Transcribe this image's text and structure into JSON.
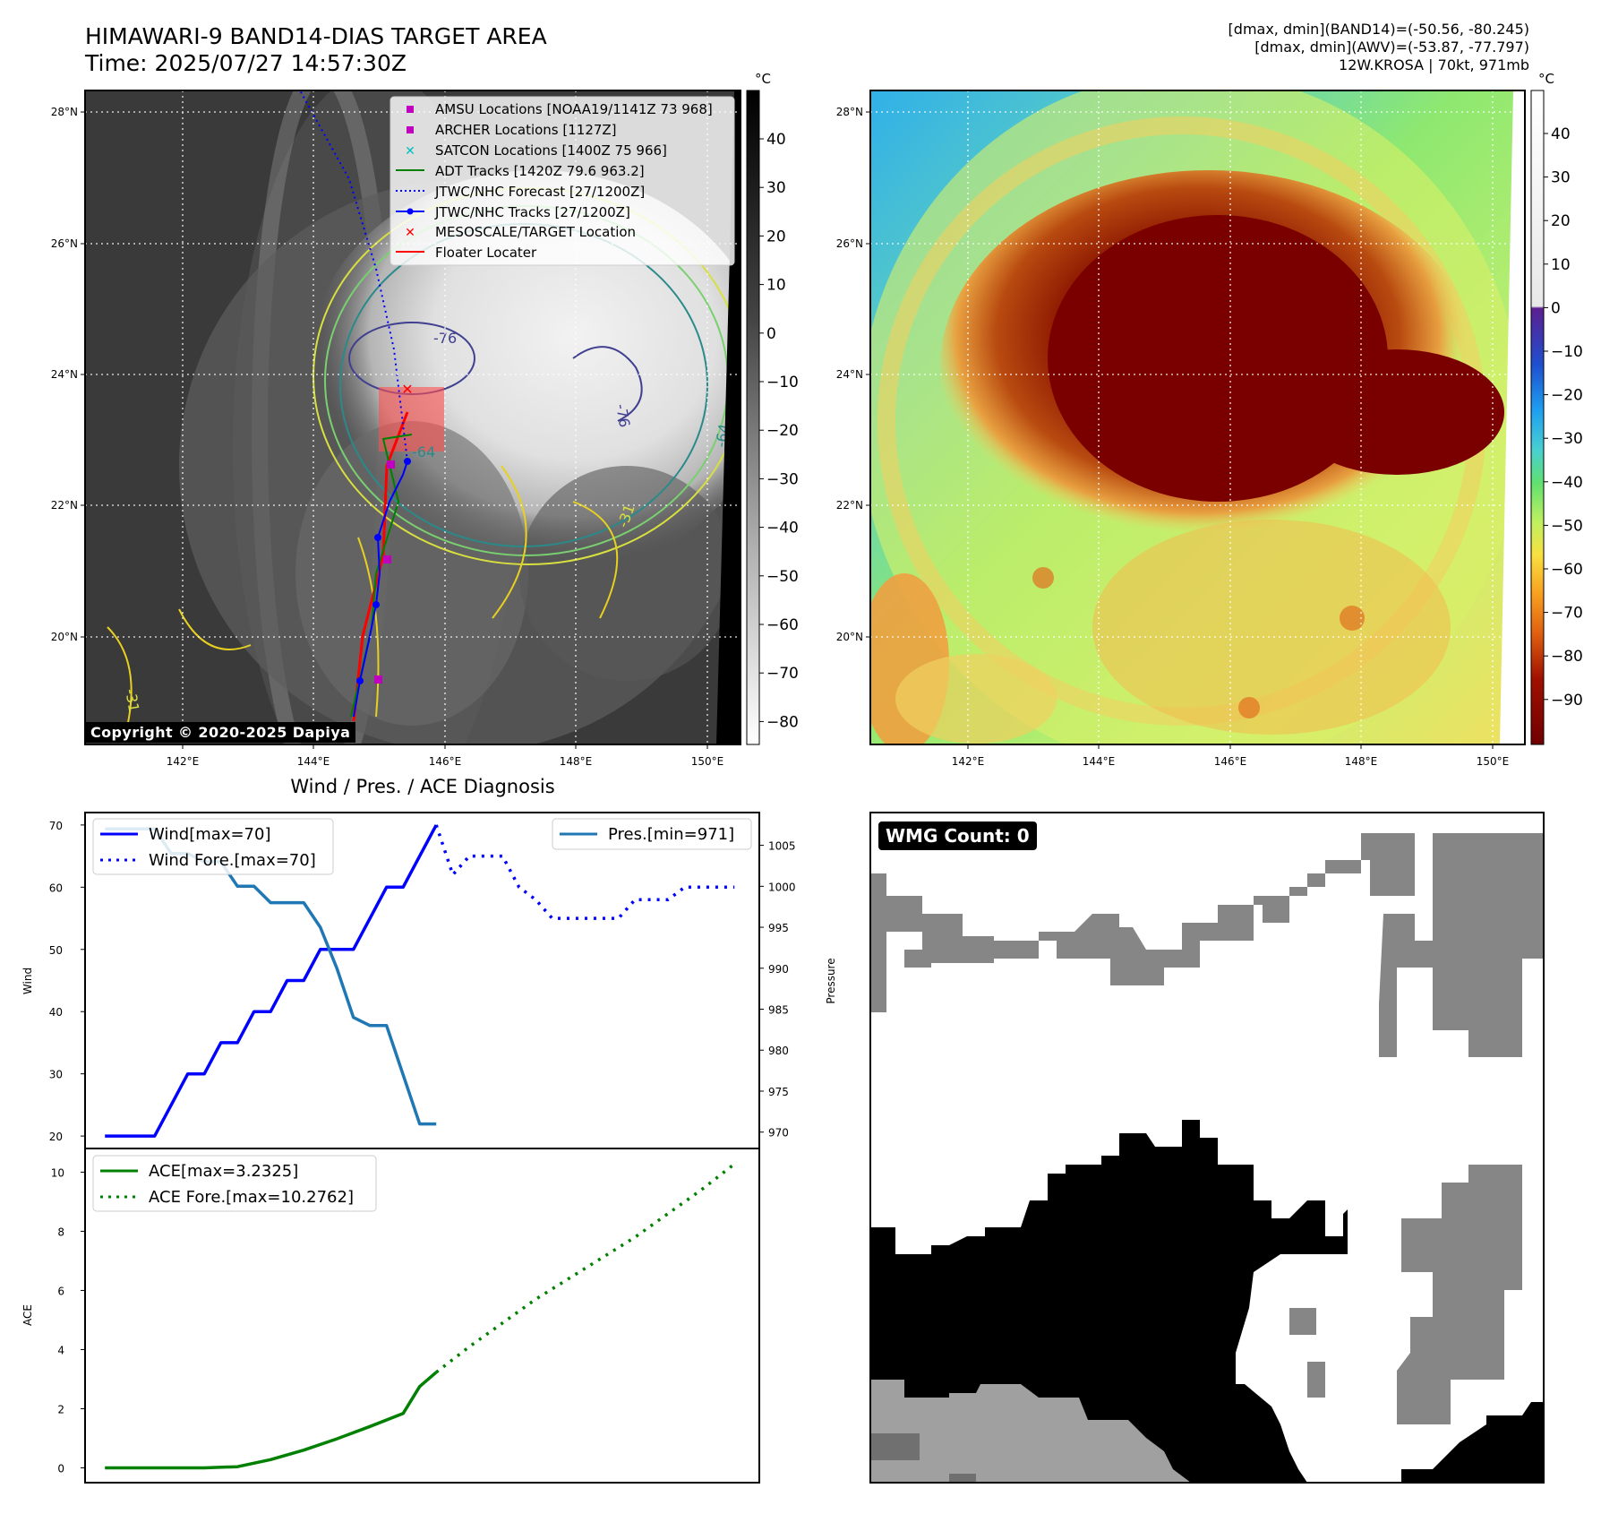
{
  "header": {
    "title_line1": "HIMAWARI-9 BAND14-DIAS TARGET AREA",
    "title_line2": "Time: 2025/07/27 14:57:30Z",
    "info_line1": "[dmax, dmin](BAND14)=(-50.56, -80.245)",
    "info_line2": "[dmax, dmin](AWV)=(-53.87, -77.797)",
    "info_line3": "12W.KROSA | 70kt, 971mb"
  },
  "map_axes": {
    "x_ticks": [
      "142°E",
      "144°E",
      "146°E",
      "148°E",
      "150°E"
    ],
    "y_ticks": [
      "28°N",
      "26°N",
      "24°N",
      "22°N",
      "20°N"
    ]
  },
  "ir_map": {
    "copyright": "Copyright © 2020-2025 Dapiya",
    "colorbar_unit": "°C",
    "colorbar_ticks": [
      "40",
      "30",
      "20",
      "10",
      "0",
      "−10",
      "−20",
      "−30",
      "−40",
      "−50",
      "−60",
      "−70",
      "−80"
    ],
    "contour_labels": [
      "-76",
      "-76",
      "-64",
      "-64",
      "-31",
      "-31"
    ],
    "legend": [
      {
        "label": "AMSU Locations [NOAA19/1141Z 73 968]",
        "color": "#bf00bf",
        "marker": "square"
      },
      {
        "label": "ARCHER Locations [1127Z]",
        "color": "#bf00bf",
        "marker": "square"
      },
      {
        "label": "SATCON Locations [1400Z 75 966]",
        "color": "#00bfbf",
        "marker": "x"
      },
      {
        "label": "ADT Tracks [1420Z 79.6 963.2]",
        "color": "#008000",
        "marker": "line"
      },
      {
        "label": "JTWC/NHC Forecast [27/1200Z]",
        "color": "#0000ff",
        "marker": "dotted"
      },
      {
        "label": "JTWC/NHC Tracks [27/1200Z]",
        "color": "#0000ff",
        "marker": "line-dot"
      },
      {
        "label": "MESOSCALE/TARGET Location",
        "color": "#ff0000",
        "marker": "x"
      },
      {
        "label": "Floater Locater",
        "color": "#ff0000",
        "marker": "line"
      }
    ]
  },
  "awv_map": {
    "colorbar_unit": "°C",
    "colorbar_ticks": [
      "40",
      "30",
      "20",
      "10",
      "0",
      "−10",
      "−20",
      "−30",
      "−40",
      "−50",
      "−60",
      "−70",
      "−80",
      "−90"
    ]
  },
  "chart_data": [
    {
      "type": "line",
      "title": "Wind / Pres. / ACE Diagnosis",
      "ylabel": "Wind",
      "ylabel_right": "Pressure",
      "ylim": [
        18,
        72
      ],
      "ylim_right": [
        968,
        1009
      ],
      "yticks": [
        "20",
        "30",
        "40",
        "50",
        "60",
        "70"
      ],
      "yticks_right": [
        "970",
        "975",
        "980",
        "985",
        "990",
        "995",
        "1000",
        "1005"
      ],
      "legend_left": [
        "Wind[max=70]",
        "Wind Fore.[max=70]"
      ],
      "legend_right": [
        "Pres.[min=971]"
      ],
      "series": [
        {
          "name": "Wind[max=70]",
          "color": "#0000ff",
          "style": "solid",
          "x": [
            0,
            1,
            2,
            3,
            4,
            5,
            6,
            7,
            8,
            9,
            10,
            11,
            12,
            13,
            14,
            15,
            16,
            17,
            18,
            19,
            20
          ],
          "values": [
            20,
            20,
            20,
            20,
            25,
            30,
            30,
            35,
            35,
            40,
            40,
            45,
            45,
            50,
            50,
            50,
            55,
            60,
            60,
            65,
            70
          ]
        },
        {
          "name": "Wind Fore.[max=70]",
          "color": "#0000ff",
          "style": "dotted",
          "x": [
            20,
            21,
            22,
            23,
            24,
            25,
            26,
            27,
            28,
            29,
            30,
            31,
            32,
            33,
            34,
            35,
            36,
            37,
            38
          ],
          "values": [
            70,
            62,
            65,
            65,
            65,
            60,
            58,
            55,
            55,
            55,
            55,
            55,
            58,
            58,
            58,
            60,
            60,
            60,
            60
          ]
        },
        {
          "name": "Pres.[min=971]",
          "color": "#1f77b4",
          "style": "solid",
          "axis": "right",
          "x": [
            0,
            1,
            2,
            3,
            4,
            5,
            6,
            7,
            8,
            9,
            10,
            11,
            12,
            13,
            14,
            15,
            16,
            17,
            18,
            19,
            20
          ],
          "values": [
            1007,
            1007,
            1007,
            1007,
            1004,
            1004,
            1003,
            1003,
            1000,
            1000,
            998,
            998,
            998,
            995,
            990,
            984,
            983,
            983,
            977,
            971,
            971
          ]
        }
      ]
    },
    {
      "type": "line",
      "ylabel": "ACE",
      "ylim": [
        -0.5,
        10.8
      ],
      "yticks": [
        "0",
        "2",
        "4",
        "6",
        "8",
        "10"
      ],
      "legend": [
        "ACE[max=3.2325]",
        "ACE Fore.[max=10.2762]"
      ],
      "series": [
        {
          "name": "ACE[max=3.2325]",
          "color": "#008000",
          "style": "solid",
          "x": [
            0,
            2,
            4,
            6,
            8,
            10,
            12,
            14,
            16,
            18,
            19,
            20
          ],
          "values": [
            0,
            0,
            0,
            0,
            0.04,
            0.28,
            0.6,
            0.98,
            1.4,
            1.84,
            2.75,
            3.2325
          ]
        },
        {
          "name": "ACE Fore.[max=10.2762]",
          "color": "#008000",
          "style": "dotted",
          "x": [
            20,
            22,
            24,
            26,
            28,
            30,
            32,
            34,
            36,
            38
          ],
          "values": [
            3.2325,
            4.1,
            4.9,
            5.7,
            6.4,
            7.1,
            7.8,
            8.6,
            9.4,
            10.2762
          ]
        }
      ]
    }
  ],
  "wmg_panel": {
    "badge": "WMG Count: 0"
  }
}
